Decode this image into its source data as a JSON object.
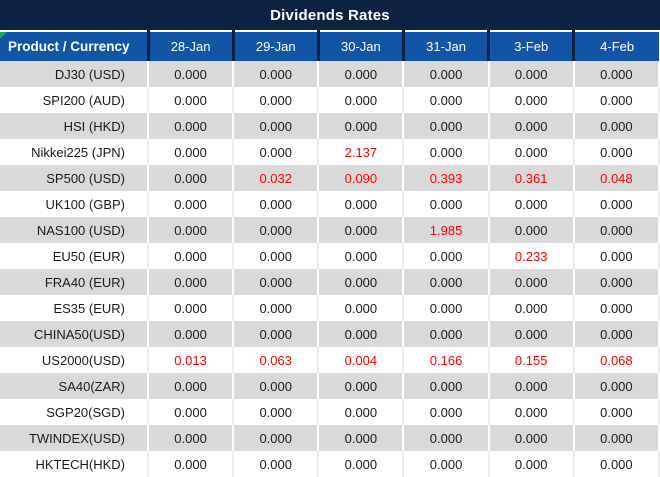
{
  "title": "Dividends Rates",
  "chart_data": {
    "type": "table",
    "title": "Dividends Rates",
    "columns": [
      "Product / Currency",
      "28-Jan",
      "29-Jan",
      "30-Jan",
      "31-Jan",
      "3-Feb",
      "4-Feb"
    ],
    "rows": [
      {
        "product": "DJ30 (USD)",
        "values": [
          "0.000",
          "0.000",
          "0.000",
          "0.000",
          "0.000",
          "0.000"
        ],
        "red": [
          false,
          false,
          false,
          false,
          false,
          false
        ]
      },
      {
        "product": "SPI200 (AUD)",
        "values": [
          "0.000",
          "0.000",
          "0.000",
          "0.000",
          "0.000",
          "0.000"
        ],
        "red": [
          false,
          false,
          false,
          false,
          false,
          false
        ]
      },
      {
        "product": "HSI (HKD)",
        "values": [
          "0.000",
          "0.000",
          "0.000",
          "0.000",
          "0.000",
          "0.000"
        ],
        "red": [
          false,
          false,
          false,
          false,
          false,
          false
        ]
      },
      {
        "product": "Nikkei225 (JPN)",
        "values": [
          "0.000",
          "0.000",
          "2.137",
          "0.000",
          "0.000",
          "0.000"
        ],
        "red": [
          false,
          false,
          true,
          false,
          false,
          false
        ]
      },
      {
        "product": "SP500 (USD)",
        "values": [
          "0.000",
          "0.032",
          "0.090",
          "0.393",
          "0.361",
          "0.048"
        ],
        "red": [
          false,
          true,
          true,
          true,
          true,
          true
        ]
      },
      {
        "product": "UK100 (GBP)",
        "values": [
          "0.000",
          "0.000",
          "0.000",
          "0.000",
          "0.000",
          "0.000"
        ],
        "red": [
          false,
          false,
          false,
          false,
          false,
          false
        ]
      },
      {
        "product": "NAS100 (USD)",
        "values": [
          "0.000",
          "0.000",
          "0.000",
          "1.985",
          "0.000",
          "0.000"
        ],
        "red": [
          false,
          false,
          false,
          true,
          false,
          false
        ]
      },
      {
        "product": "EU50 (EUR)",
        "values": [
          "0.000",
          "0.000",
          "0.000",
          "0.000",
          "0.233",
          "0.000"
        ],
        "red": [
          false,
          false,
          false,
          false,
          true,
          false
        ]
      },
      {
        "product": "FRA40 (EUR)",
        "values": [
          "0.000",
          "0.000",
          "0.000",
          "0.000",
          "0.000",
          "0.000"
        ],
        "red": [
          false,
          false,
          false,
          false,
          false,
          false
        ]
      },
      {
        "product": "ES35 (EUR)",
        "values": [
          "0.000",
          "0.000",
          "0.000",
          "0.000",
          "0.000",
          "0.000"
        ],
        "red": [
          false,
          false,
          false,
          false,
          false,
          false
        ]
      },
      {
        "product": "CHINA50(USD)",
        "values": [
          "0.000",
          "0.000",
          "0.000",
          "0.000",
          "0.000",
          "0.000"
        ],
        "red": [
          false,
          false,
          false,
          false,
          false,
          false
        ]
      },
      {
        "product": "US2000(USD)",
        "values": [
          "0.013",
          "0.063",
          "0.004",
          "0.166",
          "0.155",
          "0.068"
        ],
        "red": [
          true,
          true,
          true,
          true,
          true,
          true
        ]
      },
      {
        "product": "SA40(ZAR)",
        "values": [
          "0.000",
          "0.000",
          "0.000",
          "0.000",
          "0.000",
          "0.000"
        ],
        "red": [
          false,
          false,
          false,
          false,
          false,
          false
        ]
      },
      {
        "product": "SGP20(SGD)",
        "values": [
          "0.000",
          "0.000",
          "0.000",
          "0.000",
          "0.000",
          "0.000"
        ],
        "red": [
          false,
          false,
          false,
          false,
          false,
          false
        ]
      },
      {
        "product": "TWINDEX(USD)",
        "values": [
          "0.000",
          "0.000",
          "0.000",
          "0.000",
          "0.000",
          "0.000"
        ],
        "red": [
          false,
          false,
          false,
          false,
          false,
          false
        ]
      },
      {
        "product": "HKTECH(HKD)",
        "values": [
          "0.000",
          "0.000",
          "0.000",
          "0.000",
          "0.000",
          "0.000"
        ],
        "red": [
          false,
          false,
          false,
          false,
          false,
          false
        ]
      }
    ]
  },
  "colors": {
    "title_bg": "#0C2240",
    "header_bg": "#1254A6",
    "header_text": "#FFFFFF",
    "row_alt_bg": "#D9D9D9",
    "value_text": "#1A1A1A",
    "red_value": "#FF0000",
    "corner_triangle_green": "#21A366"
  }
}
